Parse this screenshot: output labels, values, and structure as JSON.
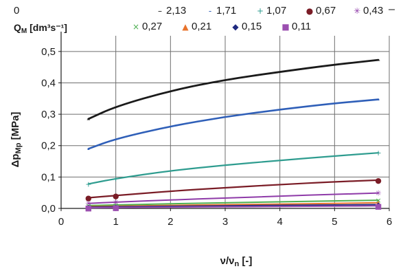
{
  "chart_data": {
    "type": "line",
    "title": "",
    "xlabel": "ν/ν",
    "xlabel_sub": "n",
    "xlabel_unit": " [-]",
    "ylabel": "Δp",
    "ylabel_sub": "Mp",
    "ylabel_unit": " [MPa]",
    "xlim": [
      0,
      6
    ],
    "ylim": [
      0,
      0.55
    ],
    "x_ticks": [
      "0",
      "1",
      "2",
      "3",
      "4",
      "5",
      "6"
    ],
    "y_ticks": [
      "0,0",
      "0,1",
      "0,2",
      "0,3",
      "0,4",
      "0,5"
    ],
    "grid": true,
    "legend_title_prefix": "Q",
    "legend_title_sub": "M",
    "legend_title_unit": " [dm³s⁻¹]",
    "legend_top_left": "0",
    "legend_placement": "top",
    "series": [
      {
        "name": "2,13",
        "marker": "–",
        "color": "#1a1a1a",
        "x": [
          0.5,
          1,
          2,
          3,
          4,
          5,
          5.8
        ],
        "y": [
          0.285,
          0.325,
          0.375,
          0.41,
          0.435,
          0.458,
          0.473
        ]
      },
      {
        "name": "1,71",
        "marker": "-",
        "color": "#2f5fb8",
        "x": [
          0.5,
          1,
          2,
          3,
          4,
          5,
          5.8
        ],
        "y": [
          0.19,
          0.222,
          0.262,
          0.292,
          0.315,
          0.335,
          0.347
        ]
      },
      {
        "name": "1,07",
        "marker": "+",
        "color": "#2e9c8f",
        "x": [
          0.5,
          1,
          2,
          3,
          4,
          5,
          5.8
        ],
        "y": [
          0.078,
          0.095,
          0.12,
          0.138,
          0.153,
          0.167,
          0.177
        ]
      },
      {
        "name": "0,67",
        "marker": "●",
        "color": "#7a1c26",
        "x": [
          0.5,
          1,
          2,
          3,
          4,
          5,
          5.8
        ],
        "y": [
          0.034,
          0.041,
          0.055,
          0.066,
          0.076,
          0.085,
          0.09
        ]
      },
      {
        "name": "0,43",
        "marker": "✳",
        "color": "#8e3aa8",
        "x": [
          0.5,
          1,
          2,
          3,
          4,
          5,
          5.8
        ],
        "y": [
          0.016,
          0.02,
          0.027,
          0.033,
          0.039,
          0.045,
          0.049
        ]
      },
      {
        "name": "0,27",
        "marker": "×",
        "color": "#4caf50",
        "x": [
          0.5,
          1,
          2,
          3,
          4,
          5,
          5.8
        ],
        "y": [
          0.009,
          0.011,
          0.015,
          0.018,
          0.021,
          0.024,
          0.026
        ]
      },
      {
        "name": "0,21",
        "marker": "▲",
        "color": "#e8732c",
        "x": [
          0.5,
          1,
          2,
          3,
          4,
          5,
          5.8
        ],
        "y": [
          0.006,
          0.007,
          0.01,
          0.012,
          0.014,
          0.016,
          0.018
        ]
      },
      {
        "name": "0,15",
        "marker": "◆",
        "color": "#1f2a80",
        "x": [
          0.5,
          1,
          2,
          3,
          4,
          5,
          5.8
        ],
        "y": [
          0.004,
          0.005,
          0.007,
          0.008,
          0.01,
          0.011,
          0.012
        ]
      },
      {
        "name": "0,11",
        "marker": "■",
        "color": "#9b4fb0",
        "x": [
          0.5,
          1,
          2,
          3,
          4,
          5,
          5.8
        ],
        "y": [
          0.002,
          0.003,
          0.004,
          0.005,
          0.006,
          0.007,
          0.008
        ]
      }
    ]
  }
}
